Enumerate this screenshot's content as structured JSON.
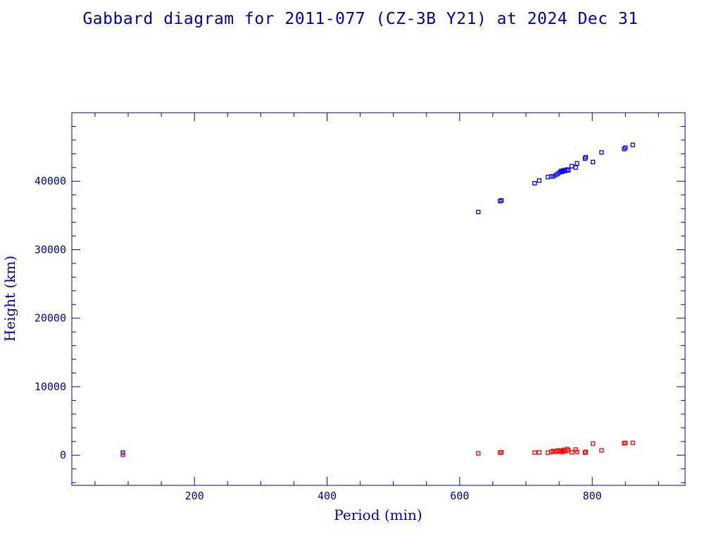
{
  "chart_data": {
    "type": "scatter",
    "title": "Gabbard diagram for 2011-077 (CZ-3B Y21) at 2024 Dec 31",
    "xlabel": "Period (min)",
    "ylabel": "Height (km)",
    "xlim": [
      15,
      940
    ],
    "ylim": [
      -4400,
      50000
    ],
    "xticks": [
      200,
      400,
      600,
      800
    ],
    "yticks": [
      0,
      10000,
      20000,
      30000,
      40000
    ],
    "grid": false,
    "series": [
      {
        "color": "#0000ff",
        "points": [
          [
            92,
            380
          ],
          [
            628,
            35500
          ],
          [
            661,
            37100
          ],
          [
            663,
            37200
          ],
          [
            713,
            39700
          ],
          [
            720,
            40100
          ],
          [
            733,
            40600
          ],
          [
            738,
            40700
          ],
          [
            741,
            40700
          ],
          [
            745,
            40900
          ],
          [
            748,
            41100
          ],
          [
            751,
            41300
          ],
          [
            753,
            41500
          ],
          [
            755,
            41400
          ],
          [
            757,
            41600
          ],
          [
            759,
            41500
          ],
          [
            762,
            41700
          ],
          [
            764,
            41600
          ],
          [
            769,
            42200
          ],
          [
            775,
            42000
          ],
          [
            777,
            42600
          ],
          [
            789,
            43300
          ],
          [
            790,
            43500
          ],
          [
            801,
            42800
          ],
          [
            814,
            44200
          ],
          [
            848,
            44700
          ],
          [
            850,
            44900
          ],
          [
            861,
            45300
          ]
        ]
      },
      {
        "color": "#ff0000",
        "points": [
          [
            92,
            80
          ],
          [
            628,
            280
          ],
          [
            661,
            380
          ],
          [
            663,
            430
          ],
          [
            713,
            380
          ],
          [
            720,
            420
          ],
          [
            733,
            380
          ],
          [
            738,
            480
          ],
          [
            741,
            600
          ],
          [
            745,
            520
          ],
          [
            748,
            700
          ],
          [
            751,
            560
          ],
          [
            753,
            660
          ],
          [
            755,
            480
          ],
          [
            757,
            760
          ],
          [
            759,
            580
          ],
          [
            762,
            900
          ],
          [
            764,
            700
          ],
          [
            769,
            420
          ],
          [
            775,
            820
          ],
          [
            777,
            480
          ],
          [
            789,
            380
          ],
          [
            790,
            480
          ],
          [
            801,
            1700
          ],
          [
            814,
            700
          ],
          [
            848,
            1750
          ],
          [
            850,
            1800
          ],
          [
            861,
            1800
          ]
        ]
      }
    ]
  }
}
